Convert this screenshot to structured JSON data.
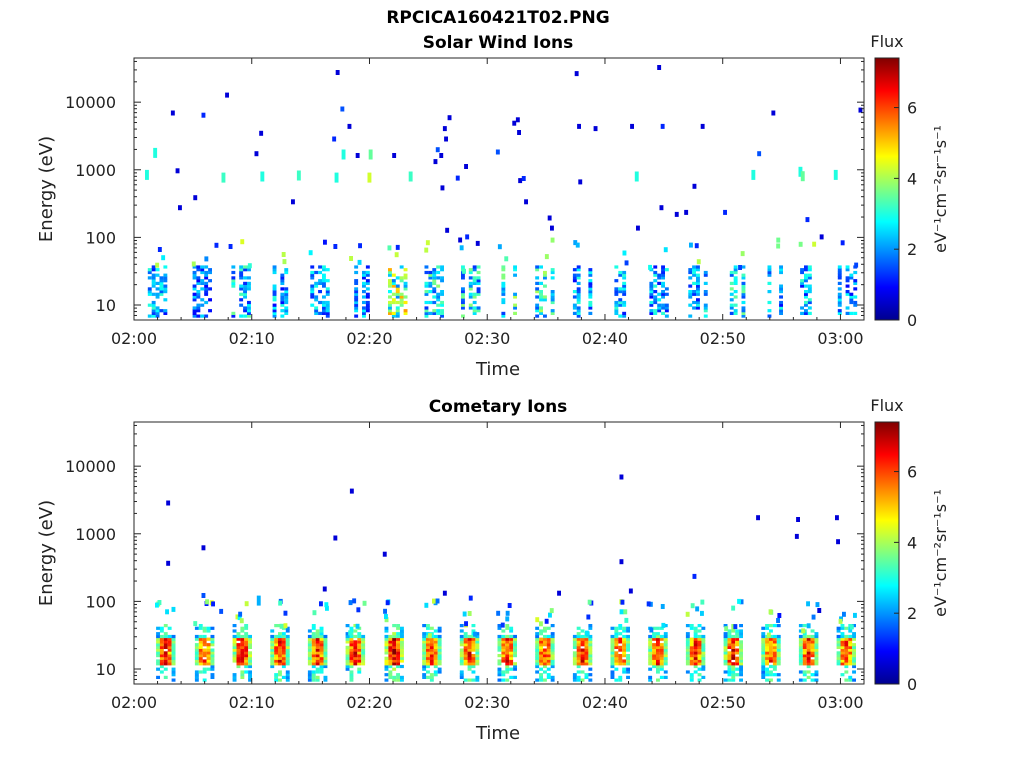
{
  "figure_title": "RPCICA160421T02.PNG",
  "colors": {
    "colormap": [
      "#00008f",
      "#0000ff",
      "#0080ff",
      "#00ffff",
      "#80ff80",
      "#ffff00",
      "#ff8000",
      "#ff0000",
      "#800000"
    ]
  },
  "chart_data": [
    {
      "type": "heatmap",
      "title": "Solar Wind Ions",
      "xlabel": "Time",
      "ylabel": "Energy (eV)",
      "x_tick_labels": [
        "02:00",
        "02:10",
        "02:20",
        "02:30",
        "02:40",
        "02:50",
        "03:00"
      ],
      "y_tick_labels": [
        "10",
        "100",
        "1000",
        "10000"
      ],
      "y_scale": "log",
      "ylim": [
        6,
        45000
      ],
      "xlim": [
        "02:00",
        "03:02"
      ],
      "colorbar": {
        "label": "Flux",
        "unit": "eV⁻¹cm⁻²sr⁻¹s⁻¹",
        "ticks": [
          "0",
          "2",
          "4",
          "6"
        ],
        "range": [
          0,
          7.4
        ]
      },
      "bursts": [
        {
          "t": 2.0,
          "level": 2.5
        },
        {
          "t": 5.8,
          "level": 2.0
        },
        {
          "t": 9.1,
          "level": 2.8
        },
        {
          "t": 12.6,
          "level": 2.4
        },
        {
          "t": 15.8,
          "level": 2.3
        },
        {
          "t": 19.2,
          "level": 2.3
        },
        {
          "t": 22.4,
          "level": 4.2
        },
        {
          "t": 25.5,
          "level": 3.0
        },
        {
          "t": 28.6,
          "level": 3.0
        },
        {
          "t": 31.7,
          "level": 3.2
        },
        {
          "t": 34.9,
          "level": 3.1
        },
        {
          "t": 38.1,
          "level": 2.4
        },
        {
          "t": 41.3,
          "level": 2.6
        },
        {
          "t": 44.6,
          "level": 2.4
        },
        {
          "t": 47.9,
          "level": 2.5
        },
        {
          "t": 51.1,
          "level": 3.0
        },
        {
          "t": 54.3,
          "level": 2.3
        },
        {
          "t": 57.4,
          "level": 2.5
        },
        {
          "t": 60.6,
          "level": 2.2
        }
      ],
      "points": [
        {
          "t": 1.1,
          "e": 900,
          "level": 3.0
        },
        {
          "t": 1.8,
          "e": 1900,
          "level": 3.0
        },
        {
          "t": 2.2,
          "e": 65,
          "level": 1.2
        },
        {
          "t": 3.3,
          "e": 6800,
          "level": 0.6
        },
        {
          "t": 3.7,
          "e": 950,
          "level": 0.6
        },
        {
          "t": 3.9,
          "e": 270,
          "level": 0.6
        },
        {
          "t": 5.2,
          "e": 380,
          "level": 0.6
        },
        {
          "t": 5.9,
          "e": 6300,
          "level": 1.2
        },
        {
          "t": 7.0,
          "e": 75,
          "level": 1.2
        },
        {
          "t": 7.6,
          "e": 820,
          "level": 3.2
        },
        {
          "t": 7.9,
          "e": 12500,
          "level": 0.6
        },
        {
          "t": 8.2,
          "e": 72,
          "level": 1.2
        },
        {
          "t": 10.4,
          "e": 1700,
          "level": 0.6
        },
        {
          "t": 10.8,
          "e": 3400,
          "level": 0.6
        },
        {
          "t": 10.9,
          "e": 850,
          "level": 3.0
        },
        {
          "t": 13.5,
          "e": 330,
          "level": 0.6
        },
        {
          "t": 14.0,
          "e": 880,
          "level": 3.2
        },
        {
          "t": 17.0,
          "e": 2800,
          "level": 1.2
        },
        {
          "t": 17.1,
          "e": 72,
          "level": 1.2
        },
        {
          "t": 17.2,
          "e": 820,
          "level": 3.0
        },
        {
          "t": 17.3,
          "e": 27000,
          "level": 0.6
        },
        {
          "t": 17.7,
          "e": 7800,
          "level": 1.5
        },
        {
          "t": 17.8,
          "e": 1800,
          "level": 3.0
        },
        {
          "t": 18.3,
          "e": 4300,
          "level": 0.6
        },
        {
          "t": 19.0,
          "e": 1600,
          "level": 0.6
        },
        {
          "t": 19.2,
          "e": 74,
          "level": 1.2
        },
        {
          "t": 20.0,
          "e": 820,
          "level": 4.3
        },
        {
          "t": 20.1,
          "e": 1800,
          "level": 3.5
        },
        {
          "t": 22.1,
          "e": 1600,
          "level": 0.6
        },
        {
          "t": 22.4,
          "e": 70,
          "level": 1.2
        },
        {
          "t": 23.5,
          "e": 850,
          "level": 3.2
        },
        {
          "t": 25.6,
          "e": 1300,
          "level": 0.6
        },
        {
          "t": 25.8,
          "e": 1950,
          "level": 1.5
        },
        {
          "t": 26.1,
          "e": 1600,
          "level": 0.6
        },
        {
          "t": 26.2,
          "e": 530,
          "level": 0.6
        },
        {
          "t": 26.4,
          "e": 4000,
          "level": 0.6
        },
        {
          "t": 26.5,
          "e": 2800,
          "level": 0.6
        },
        {
          "t": 26.6,
          "e": 125,
          "level": 0.6
        },
        {
          "t": 26.8,
          "e": 5800,
          "level": 0.6
        },
        {
          "t": 27.5,
          "e": 740,
          "level": 1.2
        },
        {
          "t": 27.7,
          "e": 90,
          "level": 0.6
        },
        {
          "t": 28.2,
          "e": 1100,
          "level": 0.6
        },
        {
          "t": 28.3,
          "e": 100,
          "level": 1.2
        },
        {
          "t": 29.2,
          "e": 80,
          "level": 0.6
        },
        {
          "t": 30.9,
          "e": 1800,
          "level": 1.5
        },
        {
          "t": 32.3,
          "e": 4800,
          "level": 0.6
        },
        {
          "t": 32.6,
          "e": 5400,
          "level": 0.6
        },
        {
          "t": 32.7,
          "e": 3500,
          "level": 0.6
        },
        {
          "t": 32.8,
          "e": 680,
          "level": 0.6
        },
        {
          "t": 33.1,
          "e": 730,
          "level": 1.2
        },
        {
          "t": 33.3,
          "e": 330,
          "level": 0.6
        },
        {
          "t": 35.3,
          "e": 190,
          "level": 0.6
        },
        {
          "t": 35.5,
          "e": 135,
          "level": 0.6
        },
        {
          "t": 37.6,
          "e": 26000,
          "level": 0.6
        },
        {
          "t": 37.8,
          "e": 4300,
          "level": 0.6
        },
        {
          "t": 37.9,
          "e": 650,
          "level": 0.6
        },
        {
          "t": 39.2,
          "e": 4000,
          "level": 0.6
        },
        {
          "t": 42.3,
          "e": 4300,
          "level": 0.6
        },
        {
          "t": 42.7,
          "e": 850,
          "level": 3.0
        },
        {
          "t": 42.8,
          "e": 135,
          "level": 0.6
        },
        {
          "t": 44.6,
          "e": 32000,
          "level": 0.6
        },
        {
          "t": 44.8,
          "e": 270,
          "level": 0.6
        },
        {
          "t": 44.9,
          "e": 4300,
          "level": 1.2
        },
        {
          "t": 46.1,
          "e": 215,
          "level": 0.6
        },
        {
          "t": 46.9,
          "e": 230,
          "level": 0.6
        },
        {
          "t": 47.6,
          "e": 560,
          "level": 0.6
        },
        {
          "t": 47.8,
          "e": 74,
          "level": 1.2
        },
        {
          "t": 48.3,
          "e": 4300,
          "level": 0.6
        },
        {
          "t": 50.2,
          "e": 230,
          "level": 1.2
        },
        {
          "t": 52.6,
          "e": 900,
          "level": 3.0
        },
        {
          "t": 53.1,
          "e": 1700,
          "level": 1.5
        },
        {
          "t": 54.3,
          "e": 6800,
          "level": 0.6
        },
        {
          "t": 56.6,
          "e": 1000,
          "level": 3.0
        },
        {
          "t": 56.8,
          "e": 860,
          "level": 3.5
        },
        {
          "t": 57.2,
          "e": 180,
          "level": 1.2
        },
        {
          "t": 58.4,
          "e": 100,
          "level": 0.6
        },
        {
          "t": 59.6,
          "e": 900,
          "level": 3.0
        },
        {
          "t": 61.7,
          "e": 7500,
          "level": 0.6
        }
      ]
    },
    {
      "type": "heatmap",
      "title": "Cometary Ions",
      "xlabel": "Time",
      "ylabel": "Energy (eV)",
      "x_tick_labels": [
        "02:00",
        "02:10",
        "02:20",
        "02:30",
        "02:40",
        "02:50",
        "03:00"
      ],
      "y_tick_labels": [
        "10",
        "100",
        "1000",
        "10000"
      ],
      "y_scale": "log",
      "ylim": [
        6,
        45000
      ],
      "xlim": [
        "02:00",
        "03:02"
      ],
      "colorbar": {
        "label": "Flux",
        "unit": "eV⁻¹cm⁻²sr⁻¹s⁻¹",
        "ticks": [
          "0",
          "2",
          "4",
          "6"
        ],
        "range": [
          0,
          7.4
        ]
      },
      "bursts": [
        {
          "t": 2.7,
          "level": 6.4
        },
        {
          "t": 6.0,
          "level": 6.2
        },
        {
          "t": 9.2,
          "level": 6.8
        },
        {
          "t": 12.4,
          "level": 6.5
        },
        {
          "t": 15.6,
          "level": 6.4
        },
        {
          "t": 18.8,
          "level": 6.6
        },
        {
          "t": 22.1,
          "level": 7.0
        },
        {
          "t": 25.3,
          "level": 6.4
        },
        {
          "t": 28.5,
          "level": 6.5
        },
        {
          "t": 31.7,
          "level": 6.4
        },
        {
          "t": 34.9,
          "level": 6.4
        },
        {
          "t": 38.1,
          "level": 6.5
        },
        {
          "t": 41.3,
          "level": 6.2
        },
        {
          "t": 44.5,
          "level": 6.5
        },
        {
          "t": 47.7,
          "level": 6.4
        },
        {
          "t": 50.9,
          "level": 6.6
        },
        {
          "t": 54.1,
          "level": 6.2
        },
        {
          "t": 57.3,
          "level": 6.4
        },
        {
          "t": 60.5,
          "level": 6.2
        }
      ],
      "points": [
        {
          "t": 2.9,
          "e": 2800,
          "level": 0.6
        },
        {
          "t": 2.9,
          "e": 360,
          "level": 0.6
        },
        {
          "t": 5.9,
          "e": 610,
          "level": 0.6
        },
        {
          "t": 5.9,
          "e": 120,
          "level": 1.5
        },
        {
          "t": 7.4,
          "e": 70,
          "level": 1.5
        },
        {
          "t": 10.6,
          "e": 110,
          "level": 2.2
        },
        {
          "t": 16.2,
          "e": 150,
          "level": 0.6
        },
        {
          "t": 17.1,
          "e": 850,
          "level": 0.6
        },
        {
          "t": 18.5,
          "e": 4200,
          "level": 0.6
        },
        {
          "t": 18.7,
          "e": 100,
          "level": 1.5
        },
        {
          "t": 21.3,
          "e": 490,
          "level": 0.6
        },
        {
          "t": 26.4,
          "e": 130,
          "level": 0.6
        },
        {
          "t": 28.6,
          "e": 110,
          "level": 1.2
        },
        {
          "t": 36.1,
          "e": 130,
          "level": 0.6
        },
        {
          "t": 41.4,
          "e": 6800,
          "level": 0.6
        },
        {
          "t": 41.4,
          "e": 380,
          "level": 0.6
        },
        {
          "t": 42.2,
          "e": 140,
          "level": 0.6
        },
        {
          "t": 47.6,
          "e": 230,
          "level": 1.2
        },
        {
          "t": 53.0,
          "e": 1700,
          "level": 0.6
        },
        {
          "t": 56.4,
          "e": 1600,
          "level": 0.6
        },
        {
          "t": 56.3,
          "e": 900,
          "level": 0.6
        },
        {
          "t": 58.2,
          "e": 72,
          "level": 0.6
        },
        {
          "t": 59.7,
          "e": 1700,
          "level": 0.6
        },
        {
          "t": 59.8,
          "e": 750,
          "level": 0.6
        }
      ]
    }
  ]
}
